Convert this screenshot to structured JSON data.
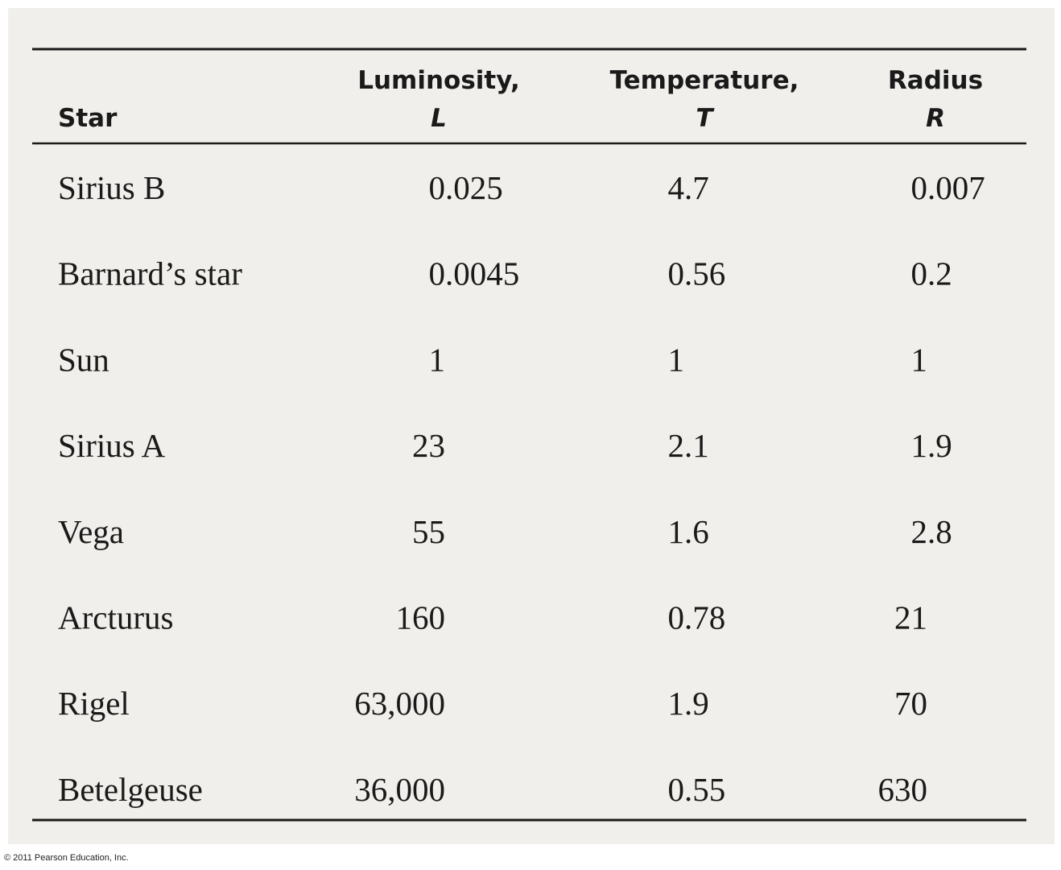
{
  "table": {
    "columns": [
      {
        "label": "Star"
      },
      {
        "label": "Luminosity,",
        "symbol": "L"
      },
      {
        "label": "Temperature,",
        "symbol": "T"
      },
      {
        "label": "Radius",
        "symbol": "R"
      }
    ],
    "rows": [
      [
        "Sirius B",
        "0.025",
        "4.7",
        "0.007"
      ],
      [
        "Barnard’s star",
        "0.0045",
        "0.56",
        "0.2"
      ],
      [
        "Sun",
        "1",
        "1",
        "1"
      ],
      [
        "Sirius A",
        "23",
        "2.1",
        "1.9"
      ],
      [
        "Vega",
        "55",
        "1.6",
        "2.8"
      ],
      [
        "Arcturus",
        "160",
        "0.78",
        "21"
      ],
      [
        "Rigel",
        "63,000",
        "1.9",
        "70"
      ],
      [
        "Betelgeuse",
        "36,000",
        "0.55",
        "630"
      ]
    ]
  },
  "footer": {
    "copyright": "© 2011 Pearson Education, Inc."
  }
}
